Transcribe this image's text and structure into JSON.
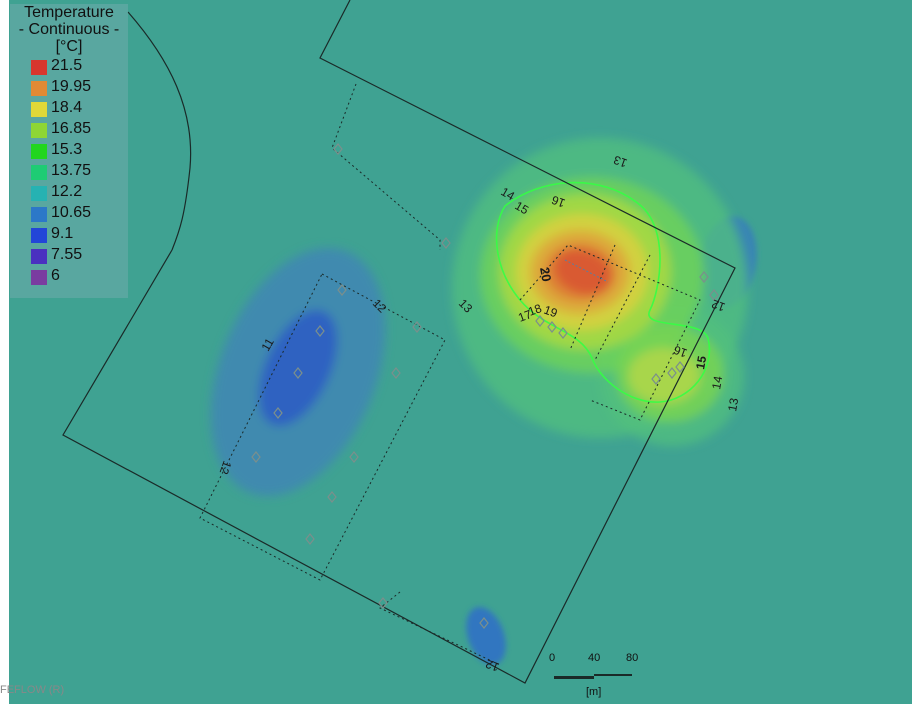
{
  "legend": {
    "title1": "Temperature",
    "title2": "- Continuous -",
    "unit": "[°C]",
    "items": [
      {
        "value": "21.5",
        "color": "#d8362e"
      },
      {
        "value": "19.95",
        "color": "#e08a34"
      },
      {
        "value": "18.4",
        "color": "#e0d838"
      },
      {
        "value": "16.85",
        "color": "#8ed634"
      },
      {
        "value": "15.3",
        "color": "#22d61e"
      },
      {
        "value": "13.75",
        "color": "#1ecc74"
      },
      {
        "value": "12.2",
        "color": "#26b2b2"
      },
      {
        "value": "10.65",
        "color": "#2c78c8"
      },
      {
        "value": "9.1",
        "color": "#2246d8"
      },
      {
        "value": "7.55",
        "color": "#4a30c0"
      },
      {
        "value": "6",
        "color": "#7a3ca0"
      }
    ]
  },
  "contour_labels": [
    "13",
    "14",
    "16",
    "15",
    "20",
    "19",
    "18",
    "17",
    "13",
    "12",
    "11",
    "12",
    "16",
    "15",
    "14",
    "13",
    "12",
    "12"
  ],
  "scale_bar": {
    "ticks": [
      "0",
      "40",
      "80"
    ],
    "unit": "[m]"
  },
  "watermark": "FEFLOW (R)",
  "colors": {
    "background": "#3fa292"
  }
}
